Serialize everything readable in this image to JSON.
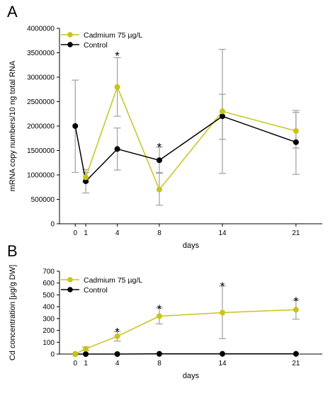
{
  "figure": {
    "panels": [
      {
        "letter": "A"
      },
      {
        "letter": "B"
      }
    ]
  },
  "colors": {
    "cadmium": "#c8c41a",
    "control": "#000000",
    "error_bar": "#a6a6a6",
    "axis": "#000000"
  },
  "chart_data": [
    {
      "type": "line",
      "panel": "A",
      "xlabel": "days",
      "ylabel": "mRNA copy numbers/10 ng total RNA",
      "x": [
        0,
        1,
        4,
        8,
        14,
        21
      ],
      "x_ticks": [
        0,
        1,
        4,
        8,
        14,
        21
      ],
      "ylim": [
        0,
        4000000
      ],
      "y_ticks": [
        0,
        500000,
        1000000,
        1500000,
        2000000,
        2500000,
        3000000,
        3500000,
        4000000
      ],
      "y_tick_labels": [
        "0",
        "500000",
        "1000000",
        "1500000",
        "2000000",
        "2500000",
        "3000000",
        "3500000",
        "4000000"
      ],
      "grid": false,
      "legend": "top-left",
      "series": [
        {
          "name": "Cadmium 75 µg/L",
          "color": "cadmium",
          "x": [
            1,
            4,
            8,
            14,
            21
          ],
          "values": [
            950000,
            2800000,
            700000,
            2300000,
            1900000
          ],
          "error_low": [
            850000,
            2200000,
            380000,
            1030000,
            1550000
          ],
          "error_high": [
            1050000,
            3400000,
            1050000,
            3570000,
            2320000
          ]
        },
        {
          "name": "Control",
          "color": "control",
          "x": [
            0,
            1,
            4,
            8,
            14,
            21
          ],
          "values": [
            2000000,
            870000,
            1530000,
            1300000,
            2200000,
            1670000
          ],
          "error_low": [
            1050000,
            630000,
            1100000,
            1030000,
            1730000,
            1010000
          ],
          "error_high": [
            2940000,
            1110000,
            1960000,
            1570000,
            2650000,
            2280000
          ]
        }
      ],
      "significance": [
        {
          "x": 4,
          "label": "*",
          "y": 3530000
        },
        {
          "x": 8,
          "label": "*",
          "y": 1660000
        }
      ]
    },
    {
      "type": "line",
      "panel": "B",
      "xlabel": "days",
      "ylabel": "Cd concentration [µg/g DW]",
      "x": [
        0,
        1,
        4,
        8,
        14,
        21
      ],
      "x_ticks": [
        0,
        1,
        4,
        8,
        14,
        21
      ],
      "ylim": [
        0,
        700
      ],
      "y_ticks": [
        0,
        100,
        200,
        300,
        400,
        500,
        600,
        700
      ],
      "y_tick_labels": [
        "0",
        "100",
        "200",
        "300",
        "400",
        "500",
        "600",
        "700"
      ],
      "grid": false,
      "legend": "top-left",
      "series": [
        {
          "name": "Cadmium 75 µg/L",
          "color": "cadmium",
          "x": [
            0,
            1,
            4,
            8,
            14,
            21
          ],
          "values": [
            0,
            45,
            150,
            320,
            350,
            375
          ],
          "error_low": [
            0,
            30,
            110,
            255,
            130,
            295
          ],
          "error_high": [
            0,
            60,
            190,
            390,
            575,
            455
          ]
        },
        {
          "name": "Control",
          "color": "control",
          "x": [
            0,
            1,
            4,
            8,
            14,
            21
          ],
          "values": [
            0,
            0,
            0,
            2,
            2,
            2
          ],
          "error_low": [
            0,
            0,
            0,
            0,
            0,
            0
          ],
          "error_high": [
            0,
            0,
            0,
            4,
            4,
            4
          ]
        }
      ],
      "significance": [
        {
          "x": 4,
          "label": "*",
          "y": 225
        },
        {
          "x": 8,
          "label": "*",
          "y": 420
        },
        {
          "x": 14,
          "label": "*",
          "y": 610
        },
        {
          "x": 21,
          "label": "*",
          "y": 485
        }
      ]
    }
  ]
}
